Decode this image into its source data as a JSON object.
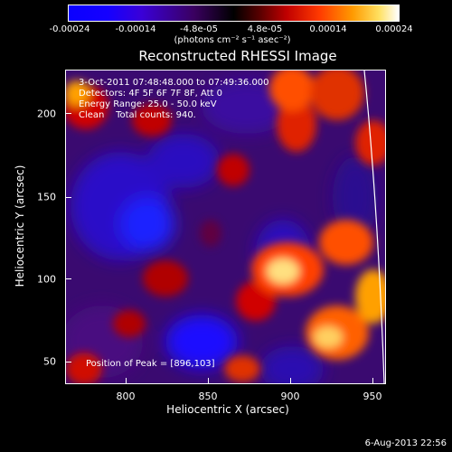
{
  "colorbar": {
    "ticks": [
      "-0.00024",
      "-0.00014",
      "-4.8e-05",
      "4.8e-05",
      "0.00014",
      "0.00024"
    ],
    "unit_label": "(photons cm⁻² s⁻¹ asec⁻²)"
  },
  "title": "Reconstructed RHESSI Image",
  "info": {
    "time_range": "3-Oct-2011 07:48:48.000 to 07:49:36.000",
    "detectors": "Detectors: 4F 5F 6F 7F 8F, Att 0",
    "energy": "Energy Range: 25.0 - 50.0 keV",
    "algorithm": "Clean    Total counts: 940.",
    "peak": "Position of Peak = [896,103]"
  },
  "axes": {
    "xlabel": "Heliocentric X (arcsec)",
    "ylabel": "Heliocentric Y (arcsec)",
    "xticks": [
      "800",
      "850",
      "900",
      "950"
    ],
    "yticks": [
      "200",
      "150",
      "100",
      "50"
    ]
  },
  "timestamp": "6-Aug-2013 22:56",
  "colors": {
    "negative": "#1a00ff",
    "neutral": "#000000",
    "positive_mid": "#ff3a00",
    "positive_high": "#ffffff",
    "limb": "#ffffff"
  }
}
